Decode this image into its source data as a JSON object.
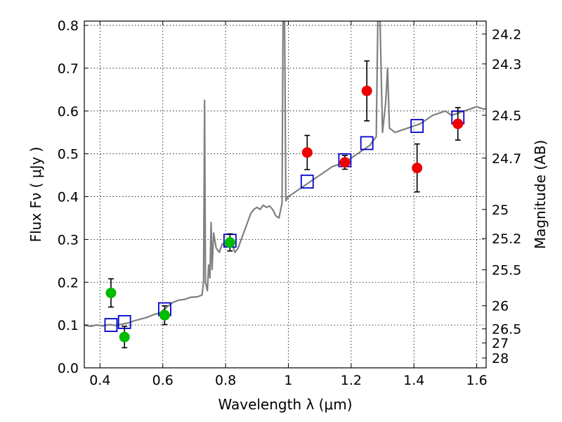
{
  "chart_data": {
    "type": "scatter",
    "xlabel": "Wavelength  λ (μm)",
    "ylabel": "Flux  Fν  ( μJy )",
    "y2label": "Magnitude (AB)",
    "xlim": [
      0.35,
      1.63
    ],
    "ylim": [
      0.0,
      0.81
    ],
    "xticks": [
      0.4,
      0.6,
      0.8,
      1.0,
      1.2,
      1.4,
      1.6
    ],
    "xtick_labels": [
      "0.4",
      "0.6",
      "0.8",
      "1",
      "1.2",
      "1.4",
      "1.6"
    ],
    "yticks": [
      0.0,
      0.1,
      0.2,
      0.3,
      0.4,
      0.5,
      0.6,
      0.7,
      0.8
    ],
    "ytick_labels": [
      "0.0",
      "0.1",
      "0.2",
      "0.3",
      "0.4",
      "0.5",
      "0.6",
      "0.7",
      "0.8"
    ],
    "magnitude_ticks": [
      {
        "label": "24.2",
        "flux": 0.78
      },
      {
        "label": "24.3",
        "flux": 0.71
      },
      {
        "label": "24.5",
        "flux": 0.59
      },
      {
        "label": "24.7",
        "flux": 0.49
      },
      {
        "label": "25",
        "flux": 0.37
      },
      {
        "label": "25.2",
        "flux": 0.302
      },
      {
        "label": "25.5",
        "flux": 0.229
      },
      {
        "label": "26",
        "flux": 0.145
      },
      {
        "label": "26.5",
        "flux": 0.091
      },
      {
        "label": "27",
        "flux": 0.058
      },
      {
        "label": "28",
        "flux": 0.023
      }
    ],
    "grid": true,
    "colors": {
      "model": "#808080",
      "model_photometry": "#0000cc",
      "green_points": "#00bb00",
      "red_points": "#ee0000",
      "errorbar": "#000000"
    },
    "series": [
      {
        "name": "model spectrum",
        "style": "line",
        "points": [
          [
            0.35,
            0.1
          ],
          [
            0.37,
            0.097
          ],
          [
            0.39,
            0.1
          ],
          [
            0.41,
            0.098
          ],
          [
            0.43,
            0.101
          ],
          [
            0.45,
            0.099
          ],
          [
            0.47,
            0.102
          ],
          [
            0.49,
            0.105
          ],
          [
            0.51,
            0.11
          ],
          [
            0.53,
            0.114
          ],
          [
            0.55,
            0.118
          ],
          [
            0.57,
            0.124
          ],
          [
            0.59,
            0.128
          ],
          [
            0.61,
            0.14
          ],
          [
            0.63,
            0.152
          ],
          [
            0.65,
            0.158
          ],
          [
            0.67,
            0.16
          ],
          [
            0.69,
            0.165
          ],
          [
            0.71,
            0.166
          ],
          [
            0.725,
            0.17
          ],
          [
            0.73,
            0.2
          ],
          [
            0.733,
            0.625
          ],
          [
            0.736,
            0.2
          ],
          [
            0.742,
            0.18
          ],
          [
            0.746,
            0.24
          ],
          [
            0.75,
            0.21
          ],
          [
            0.754,
            0.34
          ],
          [
            0.757,
            0.23
          ],
          [
            0.762,
            0.315
          ],
          [
            0.77,
            0.28
          ],
          [
            0.78,
            0.27
          ],
          [
            0.79,
            0.29
          ],
          [
            0.8,
            0.285
          ],
          [
            0.81,
            0.3
          ],
          [
            0.82,
            0.29
          ],
          [
            0.83,
            0.27
          ],
          [
            0.84,
            0.28
          ],
          [
            0.85,
            0.3
          ],
          [
            0.86,
            0.32
          ],
          [
            0.87,
            0.34
          ],
          [
            0.88,
            0.36
          ],
          [
            0.89,
            0.37
          ],
          [
            0.9,
            0.375
          ],
          [
            0.91,
            0.37
          ],
          [
            0.92,
            0.38
          ],
          [
            0.93,
            0.375
          ],
          [
            0.94,
            0.378
          ],
          [
            0.95,
            0.37
          ],
          [
            0.96,
            0.355
          ],
          [
            0.97,
            0.35
          ],
          [
            0.98,
            0.385
          ],
          [
            0.983,
            0.81
          ],
          [
            0.988,
            0.81
          ],
          [
            0.992,
            0.39
          ],
          [
            1.0,
            0.4
          ],
          [
            1.02,
            0.41
          ],
          [
            1.04,
            0.42
          ],
          [
            1.06,
            0.43
          ],
          [
            1.08,
            0.44
          ],
          [
            1.1,
            0.45
          ],
          [
            1.12,
            0.46
          ],
          [
            1.14,
            0.47
          ],
          [
            1.16,
            0.475
          ],
          [
            1.18,
            0.48
          ],
          [
            1.2,
            0.49
          ],
          [
            1.22,
            0.5
          ],
          [
            1.24,
            0.51
          ],
          [
            1.26,
            0.52
          ],
          [
            1.27,
            0.53
          ],
          [
            1.28,
            0.54
          ],
          [
            1.285,
            0.81
          ],
          [
            1.292,
            0.81
          ],
          [
            1.3,
            0.55
          ],
          [
            1.31,
            0.62
          ],
          [
            1.316,
            0.7
          ],
          [
            1.322,
            0.56
          ],
          [
            1.34,
            0.55
          ],
          [
            1.36,
            0.555
          ],
          [
            1.38,
            0.56
          ],
          [
            1.4,
            0.565
          ],
          [
            1.42,
            0.57
          ],
          [
            1.44,
            0.58
          ],
          [
            1.46,
            0.59
          ],
          [
            1.48,
            0.595
          ],
          [
            1.5,
            0.6
          ],
          [
            1.52,
            0.59
          ],
          [
            1.54,
            0.595
          ],
          [
            1.56,
            0.6
          ],
          [
            1.58,
            0.605
          ],
          [
            1.6,
            0.61
          ],
          [
            1.62,
            0.605
          ],
          [
            1.63,
            0.605
          ]
        ]
      },
      {
        "name": "model photometry",
        "style": "open-square",
        "x": [
          0.435,
          0.478,
          0.606,
          0.814,
          1.06,
          1.18,
          1.25,
          1.41,
          1.54
        ],
        "y": [
          0.1,
          0.107,
          0.137,
          0.297,
          0.435,
          0.485,
          0.525,
          0.565,
          0.585
        ]
      },
      {
        "name": "observed (green)",
        "style": "filled-circle",
        "x": [
          0.435,
          0.478,
          0.606,
          0.814
        ],
        "y": [
          0.175,
          0.072,
          0.123,
          0.293
        ],
        "yerr": [
          0.033,
          0.025,
          0.022,
          0.02
        ]
      },
      {
        "name": "observed (red)",
        "style": "filled-circle",
        "x": [
          1.06,
          1.18,
          1.25,
          1.41,
          1.54
        ],
        "y": [
          0.503,
          0.48,
          0.647,
          0.467,
          0.57
        ],
        "yerr": [
          0.04,
          0.016,
          0.07,
          0.056,
          0.038
        ]
      }
    ]
  }
}
